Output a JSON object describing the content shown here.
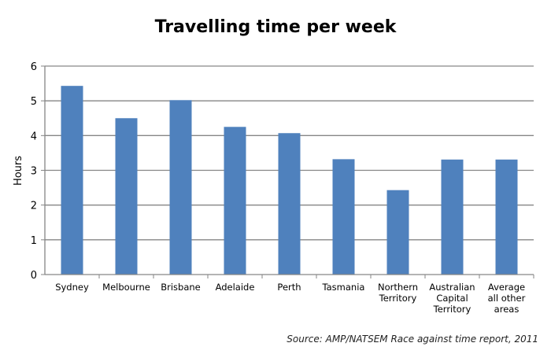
{
  "chart_data": {
    "type": "bar",
    "title": "Travelling time per week",
    "xlabel": "",
    "ylabel": "Hours",
    "ylim": [
      0,
      6
    ],
    "yticks": [
      "0",
      "1",
      "2",
      "3",
      "4",
      "5",
      "6"
    ],
    "grid": true,
    "categories": [
      [
        "Sydney"
      ],
      [
        "Melbourne"
      ],
      [
        "Brisbane"
      ],
      [
        "Adelaide"
      ],
      [
        "Perth"
      ],
      [
        "Tasmania"
      ],
      [
        "Northern",
        "Territory"
      ],
      [
        "Australian",
        "Capital",
        "Territory"
      ],
      [
        "Average",
        "all other",
        "areas"
      ]
    ],
    "values": [
      5.43,
      4.5,
      5.02,
      4.25,
      4.07,
      3.32,
      2.43,
      3.31,
      3.31
    ],
    "bar_color": "#4F81BD",
    "grid_color": "#868686"
  },
  "source": "Source: AMP/NATSEM Race against time report, 2011"
}
